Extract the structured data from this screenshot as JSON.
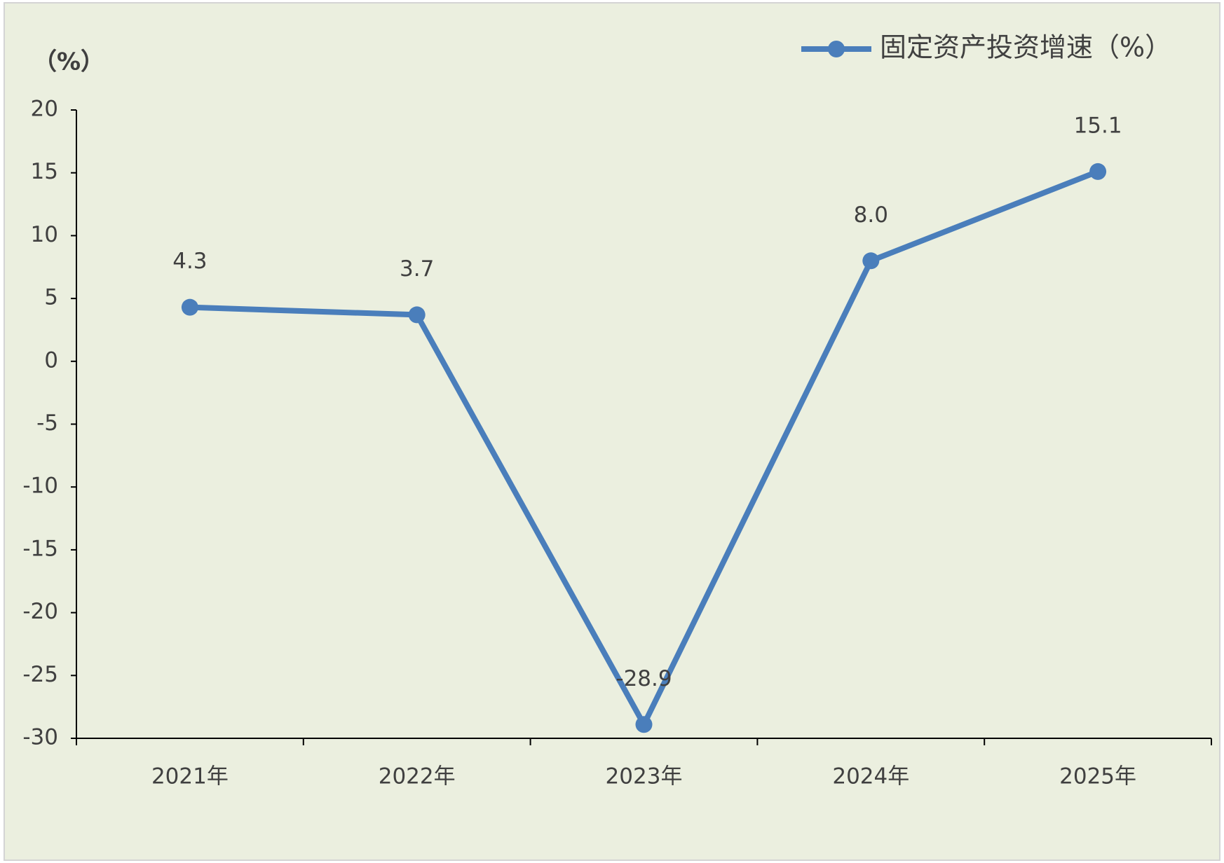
{
  "chart_data": {
    "type": "line",
    "y_label": "（%）",
    "categories": [
      "2021年",
      "2022年",
      "2023年",
      "2024年",
      "2025年"
    ],
    "series": [
      {
        "name": "固定资产投资增速（%）",
        "color": "#4a7ebb",
        "values": [
          4.3,
          3.7,
          -28.9,
          8.0,
          15.1
        ],
        "value_labels": [
          "4.3",
          "3.7",
          "-28.9",
          "8.0",
          "15.1"
        ]
      }
    ],
    "ylim": [
      -30,
      20
    ],
    "yticks": [
      -30,
      -25,
      -20,
      -15,
      -10,
      -5,
      0,
      5,
      10,
      15,
      20
    ],
    "grid": false,
    "legend": "upper-right"
  }
}
